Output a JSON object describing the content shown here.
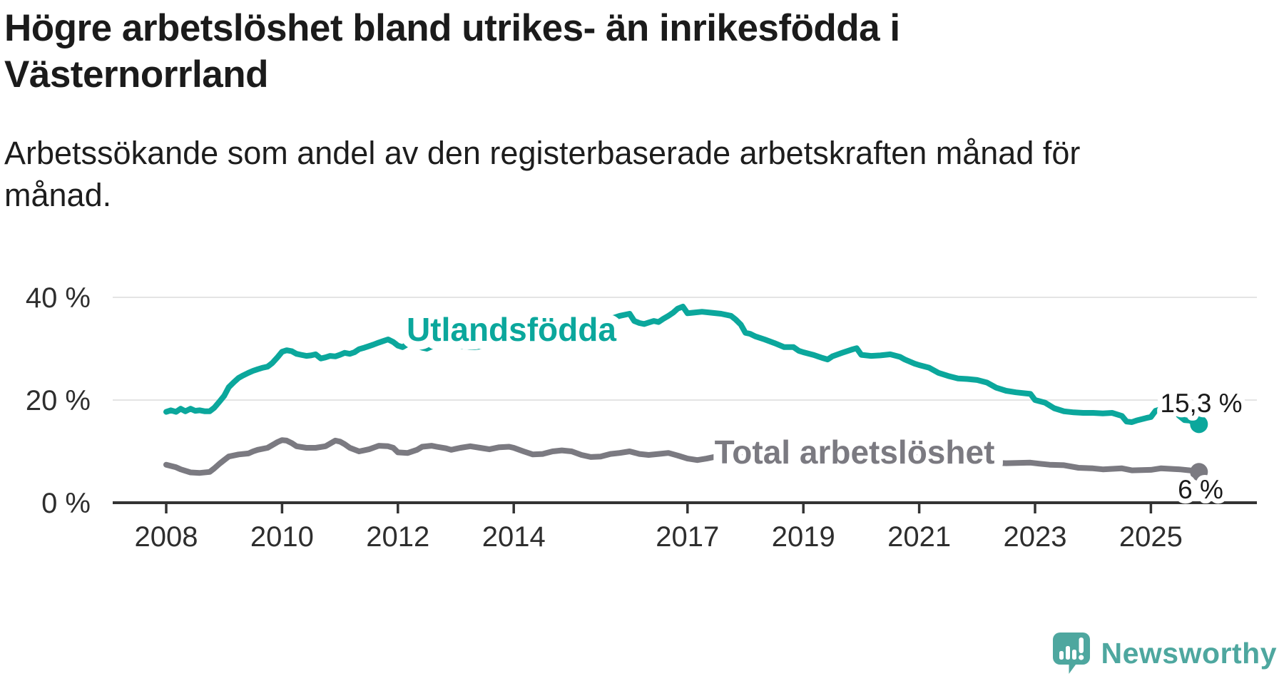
{
  "title": "Högre arbetslöshet bland utrikes- än inrikesfödda i\nVästernorrland",
  "subtitle": "Arbetssökande som andel av den registerbaserade arbetskraften månad för\nmånad.",
  "logo": {
    "text": "Newsworthy",
    "color": "#4EA79F",
    "icon": "newsworthy-speech-bubble-chart-icon"
  },
  "chart_data": {
    "type": "line",
    "title": "Högre arbetslöshet bland utrikes- än inrikesfödda i Västernorrland",
    "xlabel": "",
    "ylabel": "",
    "unit": "%",
    "grid": "horizontal-y",
    "background": "#ffffff",
    "grid_color": "#e4e4e4",
    "axis_color": "#333333",
    "text_color": "#2e2e2e",
    "value_label_color": "#1a1a1a",
    "x_axis": {
      "ticks": [
        2008,
        2010,
        2012,
        2014,
        2017,
        2019,
        2021,
        2023,
        2025
      ],
      "tick_labels": [
        "2008",
        "2010",
        "2012",
        "2014",
        "2017",
        "2019",
        "2021",
        "2023",
        "2025"
      ],
      "range": [
        2007.1,
        2026.5
      ]
    },
    "y_axis": {
      "ticks": [
        {
          "value": 0,
          "label": "0 %"
        },
        {
          "value": 20,
          "label": "20 %"
        },
        {
          "value": 40,
          "label": "40 %"
        }
      ],
      "range": [
        0,
        42
      ]
    },
    "series": [
      {
        "name": "Utlandsfödda",
        "color": "#0BA79C",
        "end_label": "15,3 %",
        "end_value": 15.3,
        "points": [
          [
            2008.0,
            17.7
          ],
          [
            2008.08,
            18.0
          ],
          [
            2008.17,
            17.7
          ],
          [
            2008.25,
            18.3
          ],
          [
            2008.33,
            17.8
          ],
          [
            2008.42,
            18.3
          ],
          [
            2008.5,
            17.9
          ],
          [
            2008.58,
            18.0
          ],
          [
            2008.67,
            17.8
          ],
          [
            2008.75,
            17.8
          ],
          [
            2008.83,
            18.5
          ],
          [
            2008.92,
            19.7
          ],
          [
            2009.0,
            20.8
          ],
          [
            2009.08,
            22.5
          ],
          [
            2009.17,
            23.5
          ],
          [
            2009.25,
            24.3
          ],
          [
            2009.33,
            24.8
          ],
          [
            2009.42,
            25.3
          ],
          [
            2009.5,
            25.7
          ],
          [
            2009.58,
            26.0
          ],
          [
            2009.67,
            26.3
          ],
          [
            2009.75,
            26.5
          ],
          [
            2009.83,
            27.2
          ],
          [
            2009.92,
            28.3
          ],
          [
            2010.0,
            29.4
          ],
          [
            2010.08,
            29.7
          ],
          [
            2010.17,
            29.5
          ],
          [
            2010.25,
            29.0
          ],
          [
            2010.33,
            28.8
          ],
          [
            2010.42,
            28.6
          ],
          [
            2010.5,
            28.7
          ],
          [
            2010.58,
            28.9
          ],
          [
            2010.67,
            28.1
          ],
          [
            2010.75,
            28.3
          ],
          [
            2010.83,
            28.6
          ],
          [
            2010.92,
            28.5
          ],
          [
            2011.0,
            28.8
          ],
          [
            2011.08,
            29.2
          ],
          [
            2011.17,
            29.0
          ],
          [
            2011.25,
            29.3
          ],
          [
            2011.33,
            29.9
          ],
          [
            2011.42,
            30.2
          ],
          [
            2011.5,
            30.5
          ],
          [
            2011.58,
            30.8
          ],
          [
            2011.67,
            31.2
          ],
          [
            2011.75,
            31.5
          ],
          [
            2011.83,
            31.8
          ],
          [
            2011.92,
            31.3
          ],
          [
            2012.0,
            30.6
          ],
          [
            2012.08,
            30.3
          ],
          [
            2012.17,
            30.9
          ],
          [
            2012.25,
            31.2
          ],
          [
            2012.33,
            30.5
          ],
          [
            2012.42,
            30.2
          ],
          [
            2012.5,
            30.0
          ],
          [
            2012.58,
            30.4
          ],
          [
            2012.67,
            30.7
          ],
          [
            2012.75,
            30.5
          ],
          [
            2012.92,
            30.6
          ],
          [
            2013.0,
            30.5
          ],
          [
            2013.17,
            30.4
          ],
          [
            2013.33,
            30.3
          ],
          [
            2013.5,
            30.5
          ],
          [
            2013.75,
            30.8
          ],
          [
            2014.0,
            31.2
          ],
          [
            2014.25,
            31.8
          ],
          [
            2014.5,
            32.3
          ],
          [
            2014.75,
            33.0
          ],
          [
            2015.0,
            33.8
          ],
          [
            2015.25,
            34.5
          ],
          [
            2015.5,
            35.3
          ],
          [
            2015.67,
            35.8
          ],
          [
            2015.83,
            36.4
          ],
          [
            2016.0,
            36.8
          ],
          [
            2016.08,
            35.4
          ],
          [
            2016.17,
            35.0
          ],
          [
            2016.25,
            34.8
          ],
          [
            2016.33,
            35.1
          ],
          [
            2016.42,
            35.4
          ],
          [
            2016.5,
            35.2
          ],
          [
            2016.58,
            35.8
          ],
          [
            2016.67,
            36.4
          ],
          [
            2016.75,
            37.0
          ],
          [
            2016.83,
            37.8
          ],
          [
            2016.92,
            38.2
          ],
          [
            2017.0,
            36.9
          ],
          [
            2017.08,
            37.0
          ],
          [
            2017.25,
            37.2
          ],
          [
            2017.42,
            37.0
          ],
          [
            2017.58,
            36.8
          ],
          [
            2017.75,
            36.4
          ],
          [
            2017.83,
            35.7
          ],
          [
            2017.92,
            34.7
          ],
          [
            2018.0,
            33.1
          ],
          [
            2018.08,
            32.9
          ],
          [
            2018.17,
            32.4
          ],
          [
            2018.33,
            31.8
          ],
          [
            2018.5,
            31.1
          ],
          [
            2018.67,
            30.3
          ],
          [
            2018.83,
            30.3
          ],
          [
            2018.92,
            29.6
          ],
          [
            2019.0,
            29.3
          ],
          [
            2019.17,
            28.8
          ],
          [
            2019.33,
            28.2
          ],
          [
            2019.42,
            27.9
          ],
          [
            2019.5,
            28.5
          ],
          [
            2019.67,
            29.2
          ],
          [
            2019.83,
            29.8
          ],
          [
            2019.92,
            30.1
          ],
          [
            2020.0,
            28.8
          ],
          [
            2020.17,
            28.6
          ],
          [
            2020.33,
            28.7
          ],
          [
            2020.5,
            28.9
          ],
          [
            2020.67,
            28.4
          ],
          [
            2020.75,
            27.9
          ],
          [
            2020.92,
            27.1
          ],
          [
            2021.0,
            26.8
          ],
          [
            2021.17,
            26.3
          ],
          [
            2021.33,
            25.3
          ],
          [
            2021.5,
            24.7
          ],
          [
            2021.67,
            24.2
          ],
          [
            2021.83,
            24.1
          ],
          [
            2022.0,
            23.9
          ],
          [
            2022.17,
            23.4
          ],
          [
            2022.33,
            22.4
          ],
          [
            2022.5,
            21.8
          ],
          [
            2022.67,
            21.5
          ],
          [
            2022.83,
            21.3
          ],
          [
            2022.92,
            21.2
          ],
          [
            2023.0,
            20.0
          ],
          [
            2023.17,
            19.5
          ],
          [
            2023.33,
            18.4
          ],
          [
            2023.5,
            17.8
          ],
          [
            2023.67,
            17.6
          ],
          [
            2023.83,
            17.5
          ],
          [
            2024.0,
            17.5
          ],
          [
            2024.17,
            17.4
          ],
          [
            2024.33,
            17.5
          ],
          [
            2024.5,
            16.9
          ],
          [
            2024.58,
            15.8
          ],
          [
            2024.67,
            15.7
          ],
          [
            2024.75,
            16.0
          ],
          [
            2024.92,
            16.5
          ],
          [
            2025.0,
            16.7
          ],
          [
            2025.08,
            17.9
          ],
          [
            2025.17,
            18.2
          ],
          [
            2025.25,
            18.3
          ],
          [
            2025.33,
            18.0
          ],
          [
            2025.42,
            17.7
          ],
          [
            2025.5,
            16.8
          ],
          [
            2025.58,
            16.1
          ],
          [
            2025.67,
            16.0
          ],
          [
            2025.75,
            15.6
          ],
          [
            2025.83,
            15.3
          ]
        ]
      },
      {
        "name": "Total arbetslöshet",
        "color": "#7B7A81",
        "end_label": "6 %",
        "end_value": 6.0,
        "points": [
          [
            2008.0,
            7.4
          ],
          [
            2008.17,
            6.9
          ],
          [
            2008.25,
            6.5
          ],
          [
            2008.42,
            5.9
          ],
          [
            2008.58,
            5.8
          ],
          [
            2008.75,
            6.0
          ],
          [
            2008.83,
            6.7
          ],
          [
            2008.92,
            7.6
          ],
          [
            2009.0,
            8.3
          ],
          [
            2009.08,
            9.0
          ],
          [
            2009.25,
            9.4
          ],
          [
            2009.42,
            9.6
          ],
          [
            2009.5,
            10.0
          ],
          [
            2009.58,
            10.3
          ],
          [
            2009.75,
            10.7
          ],
          [
            2009.92,
            11.8
          ],
          [
            2010.0,
            12.2
          ],
          [
            2010.08,
            12.1
          ],
          [
            2010.17,
            11.6
          ],
          [
            2010.25,
            11.0
          ],
          [
            2010.42,
            10.7
          ],
          [
            2010.58,
            10.7
          ],
          [
            2010.75,
            11.0
          ],
          [
            2010.92,
            12.1
          ],
          [
            2011.0,
            11.9
          ],
          [
            2011.08,
            11.4
          ],
          [
            2011.17,
            10.7
          ],
          [
            2011.33,
            10.0
          ],
          [
            2011.5,
            10.4
          ],
          [
            2011.67,
            11.1
          ],
          [
            2011.83,
            11.0
          ],
          [
            2011.92,
            10.7
          ],
          [
            2012.0,
            9.8
          ],
          [
            2012.17,
            9.7
          ],
          [
            2012.33,
            10.3
          ],
          [
            2012.42,
            10.9
          ],
          [
            2012.58,
            11.1
          ],
          [
            2012.67,
            10.9
          ],
          [
            2012.83,
            10.6
          ],
          [
            2012.92,
            10.3
          ],
          [
            2013.08,
            10.7
          ],
          [
            2013.25,
            11.0
          ],
          [
            2013.42,
            10.7
          ],
          [
            2013.58,
            10.4
          ],
          [
            2013.75,
            10.8
          ],
          [
            2013.92,
            10.9
          ],
          [
            2014.0,
            10.7
          ],
          [
            2014.17,
            10.0
          ],
          [
            2014.33,
            9.4
          ],
          [
            2014.5,
            9.5
          ],
          [
            2014.67,
            10.0
          ],
          [
            2014.83,
            10.2
          ],
          [
            2015.0,
            10.0
          ],
          [
            2015.17,
            9.3
          ],
          [
            2015.33,
            8.9
          ],
          [
            2015.5,
            9.0
          ],
          [
            2015.67,
            9.5
          ],
          [
            2015.83,
            9.7
          ],
          [
            2016.0,
            10.0
          ],
          [
            2016.17,
            9.5
          ],
          [
            2016.33,
            9.3
          ],
          [
            2016.5,
            9.5
          ],
          [
            2016.67,
            9.7
          ],
          [
            2016.83,
            9.2
          ],
          [
            2017.0,
            8.6
          ],
          [
            2017.17,
            8.3
          ],
          [
            2017.33,
            8.6
          ],
          [
            2017.5,
            9.0
          ],
          [
            2017.67,
            9.3
          ],
          [
            2018.0,
            9.0
          ],
          [
            2018.5,
            8.5
          ],
          [
            2019.0,
            8.4
          ],
          [
            2019.5,
            8.2
          ],
          [
            2020.0,
            8.6
          ],
          [
            2020.33,
            9.8
          ],
          [
            2020.67,
            9.5
          ],
          [
            2021.0,
            9.0
          ],
          [
            2021.5,
            8.4
          ],
          [
            2022.0,
            7.9
          ],
          [
            2022.5,
            7.7
          ],
          [
            2022.92,
            7.8
          ],
          [
            2023.08,
            7.6
          ],
          [
            2023.25,
            7.4
          ],
          [
            2023.5,
            7.3
          ],
          [
            2023.75,
            6.8
          ],
          [
            2024.0,
            6.7
          ],
          [
            2024.17,
            6.5
          ],
          [
            2024.5,
            6.7
          ],
          [
            2024.67,
            6.3
          ],
          [
            2025.0,
            6.4
          ],
          [
            2025.17,
            6.7
          ],
          [
            2025.5,
            6.5
          ],
          [
            2025.67,
            6.3
          ],
          [
            2025.83,
            6.0
          ]
        ]
      }
    ]
  }
}
